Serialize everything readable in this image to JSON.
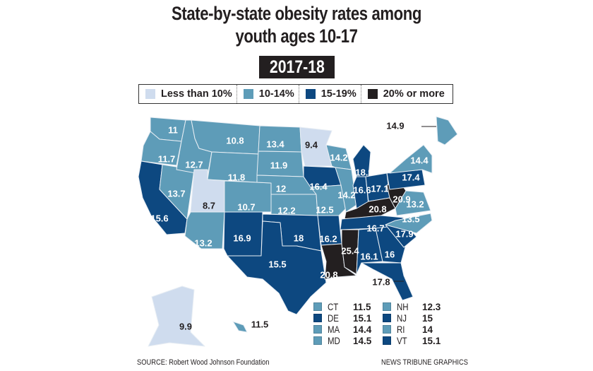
{
  "title_line1": "State-by-state obesity rates among",
  "title_line2": "youth ages 10-17",
  "period": "2017-18",
  "legend": [
    {
      "label": "Less than 10%",
      "color": "#cfdcee"
    },
    {
      "label": "10-14%",
      "color": "#5e9cb8"
    },
    {
      "label": "15-19%",
      "color": "#0d4880"
    },
    {
      "label": "20% or more",
      "color": "#231f20"
    }
  ],
  "states": {
    "WA": {
      "value": "11",
      "bucket": 1
    },
    "OR": {
      "value": "11.7",
      "bucket": 1
    },
    "CA": {
      "value": "15.6",
      "bucket": 2
    },
    "NV": {
      "value": "13.7",
      "bucket": 1
    },
    "ID": {
      "value": "12.7",
      "bucket": 1
    },
    "MT": {
      "value": "10.8",
      "bucket": 1
    },
    "WY": {
      "value": "11.8",
      "bucket": 1
    },
    "UT": {
      "value": "8.7",
      "bucket": 0
    },
    "AZ": {
      "value": "13.2",
      "bucket": 1
    },
    "CO": {
      "value": "10.7",
      "bucket": 1
    },
    "NM": {
      "value": "16.9",
      "bucket": 2
    },
    "ND": {
      "value": "13.4",
      "bucket": 1
    },
    "SD": {
      "value": "11.9",
      "bucket": 1
    },
    "NE": {
      "value": "12",
      "bucket": 1
    },
    "KS": {
      "value": "12.2",
      "bucket": 1
    },
    "OK": {
      "value": "18",
      "bucket": 2
    },
    "TX": {
      "value": "15.5",
      "bucket": 2
    },
    "MN": {
      "value": "9.4",
      "bucket": 0
    },
    "IA": {
      "value": "16.4",
      "bucket": 2
    },
    "MO": {
      "value": "12.5",
      "bucket": 1
    },
    "AR": {
      "value": "16.2",
      "bucket": 2
    },
    "LA": {
      "value": "20.8",
      "bucket": 3
    },
    "WI": {
      "value": "14.2",
      "bucket": 1
    },
    "IL": {
      "value": "14.2",
      "bucket": 1
    },
    "MI": {
      "value": "18.9",
      "bucket": 2
    },
    "IN": {
      "value": "16.6",
      "bucket": 2
    },
    "OH": {
      "value": "17.1",
      "bucket": 2
    },
    "KY": {
      "value": "20.8",
      "bucket": 3
    },
    "TN": {
      "value": "16.7",
      "bucket": 2
    },
    "MS": {
      "value": "25.4",
      "bucket": 3
    },
    "AL": {
      "value": "16.1",
      "bucket": 2
    },
    "GA": {
      "value": "16",
      "bucket": 2
    },
    "FL": {
      "value": "17.8",
      "bucket": 2
    },
    "SC": {
      "value": "17.9",
      "bucket": 2
    },
    "NC": {
      "value": "13.5",
      "bucket": 1
    },
    "VA": {
      "value": "13.2",
      "bucket": 1
    },
    "WV": {
      "value": "20.9",
      "bucket": 3
    },
    "PA": {
      "value": "17.4",
      "bucket": 2
    },
    "NY": {
      "value": "14.4",
      "bucket": 1
    },
    "ME": {
      "value": "14.9",
      "bucket": 1
    },
    "AK": {
      "value": "9.9",
      "bucket": 0
    },
    "HI": {
      "value": "11.5",
      "bucket": 1
    }
  },
  "small_states": [
    {
      "abbr": "CT",
      "value": "11.5",
      "bucket": 1
    },
    {
      "abbr": "DE",
      "value": "15.1",
      "bucket": 2
    },
    {
      "abbr": "MA",
      "value": "14.4",
      "bucket": 1
    },
    {
      "abbr": "MD",
      "value": "14.5",
      "bucket": 1
    },
    {
      "abbr": "NH",
      "value": "12.3",
      "bucket": 1
    },
    {
      "abbr": "NJ",
      "value": "15",
      "bucket": 2
    },
    {
      "abbr": "RI",
      "value": "14",
      "bucket": 1
    },
    {
      "abbr": "VT",
      "value": "15.1",
      "bucket": 2
    }
  ],
  "source": "SOURCE:  Robert Wood Johnson Foundation",
  "credit": "NEWS TRIBUNE GRAPHICS"
}
